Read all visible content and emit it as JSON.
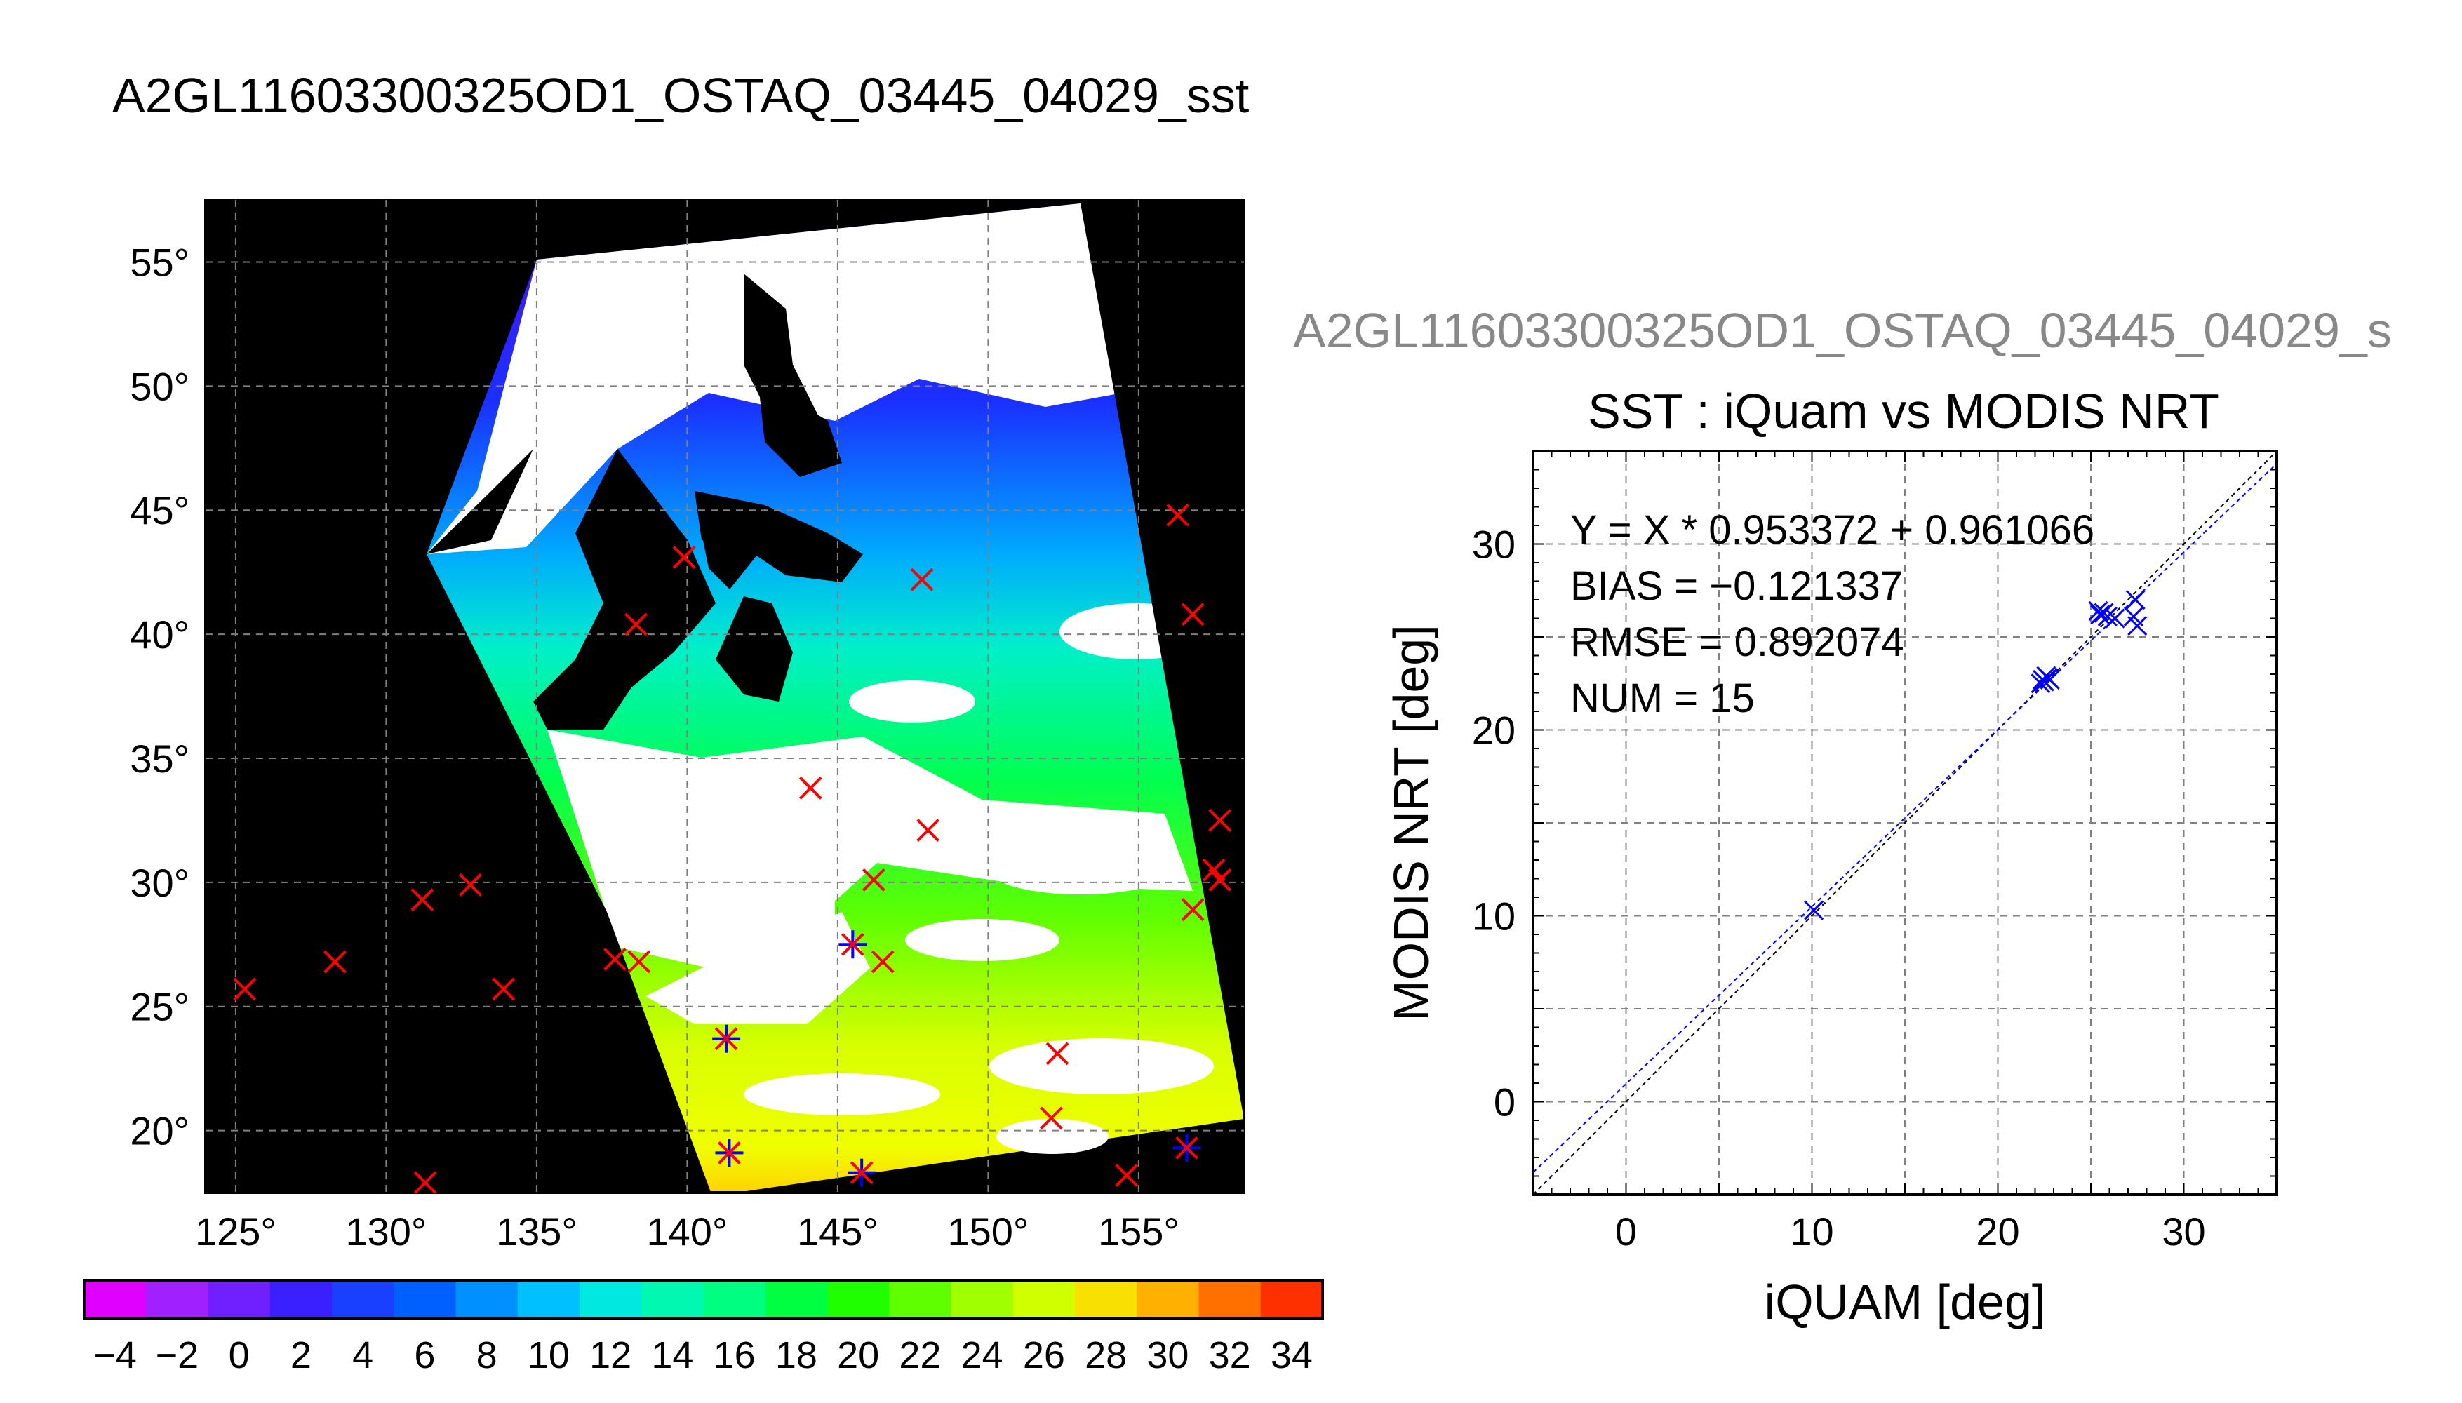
{
  "page": {
    "title": "A2GL11603300325OD1_OSTAQ_03445_04029_sst",
    "subtitle": "A2GL11603300325OD1_OSTAQ_03445_04029_s"
  },
  "colors": {
    "marker_red": "#ff0000",
    "marker_blue": "#0000ff",
    "map_background": "#000000",
    "cloud": "#ffffff",
    "subtitle_gray": "#888888"
  },
  "chart_data": [
    {
      "type": "heatmap",
      "title": "A2GL11603300325OD1_OSTAQ_03445_04029_sst",
      "xlim": [
        124,
        158.5
      ],
      "ylim": [
        17.5,
        57.5
      ],
      "x_ticks": [
        125,
        130,
        135,
        140,
        145,
        150,
        155
      ],
      "y_ticks": [
        20,
        25,
        30,
        35,
        40,
        45,
        50,
        55
      ],
      "x_tick_labels": [
        "125°",
        "130°",
        "135°",
        "140°",
        "145°",
        "150°",
        "155°"
      ],
      "y_tick_labels": [
        "20°",
        "25°",
        "30°",
        "35°",
        "40°",
        "45°",
        "50°",
        "55°"
      ],
      "grid": true,
      "colorbar": {
        "min": -5,
        "max": 35,
        "ticks": [
          -4,
          -2,
          0,
          2,
          4,
          6,
          8,
          10,
          12,
          14,
          16,
          18,
          20,
          22,
          24,
          26,
          28,
          30,
          32,
          34
        ],
        "tick_labels": [
          "−4",
          "−2",
          "0",
          "2",
          "4",
          "6",
          "8",
          "10",
          "12",
          "14",
          "16",
          "18",
          "20",
          "22",
          "24",
          "26",
          "28",
          "30",
          "32",
          "34"
        ]
      },
      "matchup_markers": [
        {
          "lon": 125.3,
          "lat": 25.7,
          "matched": false
        },
        {
          "lon": 128.3,
          "lat": 26.8,
          "matched": false
        },
        {
          "lon": 131.2,
          "lat": 29.3,
          "matched": false
        },
        {
          "lon": 132.8,
          "lat": 29.9,
          "matched": false
        },
        {
          "lon": 133.9,
          "lat": 25.7,
          "matched": false
        },
        {
          "lon": 131.3,
          "lat": 17.9,
          "matched": false
        },
        {
          "lon": 137.6,
          "lat": 26.9,
          "matched": false
        },
        {
          "lon": 138.4,
          "lat": 26.8,
          "matched": false
        },
        {
          "lon": 139.9,
          "lat": 43.1,
          "matched": false
        },
        {
          "lon": 138.3,
          "lat": 40.4,
          "matched": false
        },
        {
          "lon": 141.3,
          "lat": 23.7,
          "matched": true
        },
        {
          "lon": 141.4,
          "lat": 19.1,
          "matched": true
        },
        {
          "lon": 144.1,
          "lat": 33.8,
          "matched": false
        },
        {
          "lon": 145.5,
          "lat": 27.5,
          "matched": true
        },
        {
          "lon": 146.2,
          "lat": 30.1,
          "matched": false
        },
        {
          "lon": 146.5,
          "lat": 26.8,
          "matched": false
        },
        {
          "lon": 145.8,
          "lat": 18.3,
          "matched": true
        },
        {
          "lon": 148.0,
          "lat": 32.1,
          "matched": false
        },
        {
          "lon": 147.8,
          "lat": 42.2,
          "matched": false
        },
        {
          "lon": 152.1,
          "lat": 20.5,
          "matched": false
        },
        {
          "lon": 152.3,
          "lat": 23.1,
          "matched": false
        },
        {
          "lon": 154.6,
          "lat": 18.2,
          "matched": false
        },
        {
          "lon": 156.3,
          "lat": 44.8,
          "matched": false
        },
        {
          "lon": 156.8,
          "lat": 40.8,
          "matched": false
        },
        {
          "lon": 156.6,
          "lat": 19.3,
          "matched": true
        },
        {
          "lon": 156.8,
          "lat": 28.9,
          "matched": false
        },
        {
          "lon": 157.5,
          "lat": 30.5,
          "matched": false
        },
        {
          "lon": 157.7,
          "lat": 32.5,
          "matched": false
        },
        {
          "lon": 157.7,
          "lat": 30.1,
          "matched": false
        }
      ]
    },
    {
      "type": "scatter",
      "title": "SST : iQuam vs MODIS NRT",
      "xlabel": "iQUAM [deg]",
      "ylabel": "MODIS NRT [deg]",
      "xlim": [
        -5,
        35
      ],
      "ylim": [
        -5,
        35
      ],
      "x_ticks": [
        0,
        10,
        20,
        30
      ],
      "y_ticks": [
        0,
        10,
        20,
        30
      ],
      "grid": true,
      "annotations": [
        "Y = X * 0.953372 + 0.961066",
        "BIAS = −0.121337",
        "RMSE = 0.892074",
        "NUM = 15"
      ],
      "fit": {
        "slope": 0.953372,
        "intercept": 0.961066
      },
      "points": [
        {
          "x": 10.1,
          "y": 10.3
        },
        {
          "x": 22.4,
          "y": 22.7
        },
        {
          "x": 22.6,
          "y": 22.9
        },
        {
          "x": 22.5,
          "y": 22.6
        },
        {
          "x": 22.7,
          "y": 22.8
        },
        {
          "x": 25.5,
          "y": 26.2
        },
        {
          "x": 25.7,
          "y": 26.3
        },
        {
          "x": 26.3,
          "y": 26.0
        },
        {
          "x": 27.4,
          "y": 27.0
        },
        {
          "x": 27.5,
          "y": 25.6
        },
        {
          "x": 25.9,
          "y": 26.1
        },
        {
          "x": 22.3,
          "y": 22.5
        },
        {
          "x": 27.3,
          "y": 26.1
        },
        {
          "x": 25.4,
          "y": 26.4
        },
        {
          "x": 22.8,
          "y": 22.7
        }
      ]
    }
  ]
}
